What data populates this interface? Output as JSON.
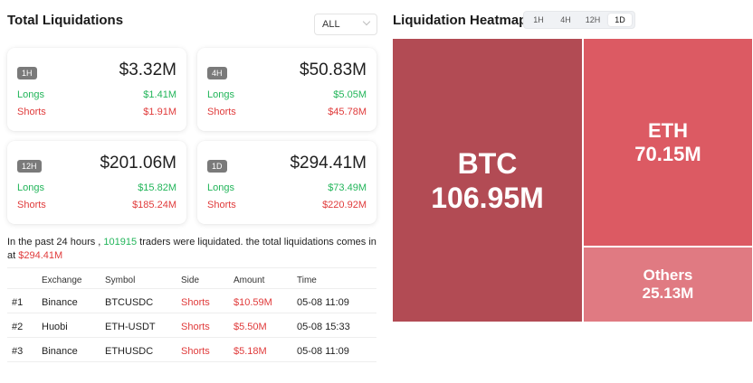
{
  "total_liquidations": {
    "title": "Total Liquidations",
    "filter": {
      "selected": "ALL"
    },
    "cards": [
      {
        "badge": "1H",
        "total": "$3.32M",
        "longs_label": "Longs",
        "longs_value": "$1.41M",
        "shorts_label": "Shorts",
        "shorts_value": "$1.91M"
      },
      {
        "badge": "4H",
        "total": "$50.83M",
        "longs_label": "Longs",
        "longs_value": "$5.05M",
        "shorts_label": "Shorts",
        "shorts_value": "$45.78M"
      },
      {
        "badge": "12H",
        "total": "$201.06M",
        "longs_label": "Longs",
        "longs_value": "$15.82M",
        "shorts_label": "Shorts",
        "shorts_value": "$185.24M"
      },
      {
        "badge": "1D",
        "total": "$294.41M",
        "longs_label": "Longs",
        "longs_value": "$73.49M",
        "shorts_label": "Shorts",
        "shorts_value": "$220.92M"
      }
    ],
    "summary": {
      "prefix": "In the past 24 hours , ",
      "traders": "101915",
      "middle": " traders were liquidated. the total liquidations comes in at ",
      "total": "$294.41M"
    },
    "table": {
      "headers": {
        "exchange": "Exchange",
        "symbol": "Symbol",
        "side": "Side",
        "amount": "Amount",
        "time": "Time"
      },
      "rows": [
        {
          "rank": "#1",
          "exchange": "Binance",
          "symbol": "BTCUSDC",
          "side": "Shorts",
          "amount": "$10.59M",
          "time": "05-08 11:09"
        },
        {
          "rank": "#2",
          "exchange": "Huobi",
          "symbol": "ETH-USDT",
          "side": "Shorts",
          "amount": "$5.50M",
          "time": "05-08 15:33"
        },
        {
          "rank": "#3",
          "exchange": "Binance",
          "symbol": "ETHUSDC",
          "side": "Shorts",
          "amount": "$5.18M",
          "time": "05-08 11:09"
        }
      ]
    }
  },
  "heatmap": {
    "title": "Liquidation Heatmap",
    "tabs": [
      "1H",
      "4H",
      "12H",
      "1D"
    ],
    "active_tab": "1D",
    "tiles": [
      {
        "symbol": "BTC",
        "value": "106.95M",
        "color": "#b24b54"
      },
      {
        "symbol": "ETH",
        "value": "70.15M",
        "color": "#dc5a63"
      },
      {
        "symbol": "Others",
        "value": "25.13M",
        "color": "#e07a82"
      }
    ]
  },
  "colors": {
    "longs": "#22b55a",
    "shorts": "#e03b3b"
  }
}
